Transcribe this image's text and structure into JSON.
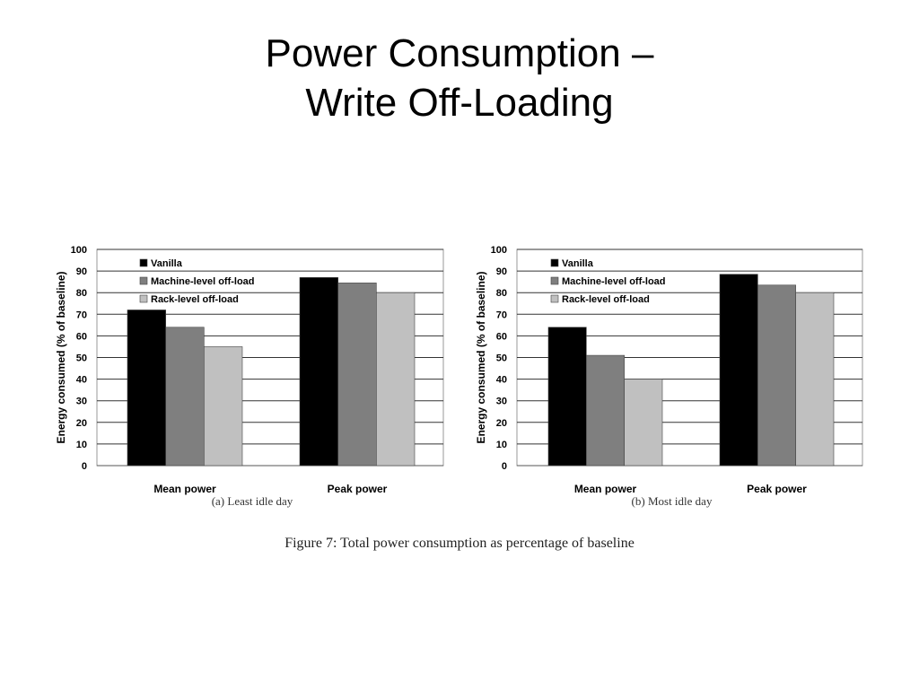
{
  "slide": {
    "title_line1": "Power Consumption –",
    "title_line2": "Write Off-Loading"
  },
  "figure": {
    "caption": "Figure 7: Total power consumption as percentage of baseline"
  },
  "chart_data": [
    {
      "type": "bar",
      "subcaption": "(a)  Least idle day",
      "ylabel": "Energy consumed (% of baseline)",
      "ylim": [
        0,
        100
      ],
      "yticks": [
        0,
        10,
        20,
        30,
        40,
        50,
        60,
        70,
        80,
        90,
        100
      ],
      "grid": true,
      "legend": "top-left",
      "categories": [
        "Mean power",
        "Peak power"
      ],
      "series": [
        {
          "name": "Vanilla",
          "color": "#000000",
          "values": [
            72,
            87
          ]
        },
        {
          "name": "Machine-level off-load",
          "color": "#7f7f7f",
          "values": [
            64,
            84.5
          ]
        },
        {
          "name": "Rack-level off-load",
          "color": "#c0c0c0",
          "values": [
            55,
            80
          ]
        }
      ]
    },
    {
      "type": "bar",
      "subcaption": "(b)  Most idle day",
      "ylabel": "Energy consumed (% of baseline)",
      "ylim": [
        0,
        100
      ],
      "yticks": [
        0,
        10,
        20,
        30,
        40,
        50,
        60,
        70,
        80,
        90,
        100
      ],
      "grid": true,
      "legend": "top-left",
      "categories": [
        "Mean power",
        "Peak power"
      ],
      "series": [
        {
          "name": "Vanilla",
          "color": "#000000",
          "values": [
            64,
            88.5
          ]
        },
        {
          "name": "Machine-level off-load",
          "color": "#7f7f7f",
          "values": [
            51,
            83.5
          ]
        },
        {
          "name": "Rack-level off-load",
          "color": "#c0c0c0",
          "values": [
            40,
            80
          ]
        }
      ]
    }
  ]
}
